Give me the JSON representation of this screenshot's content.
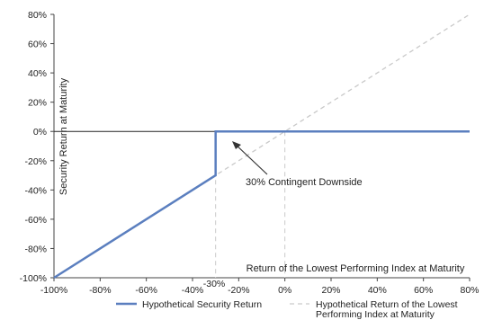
{
  "chart_data": {
    "type": "line",
    "xlabel": "Return of the Lowest Performing Index at Maturity",
    "ylabel": "Security Return at Maturity",
    "xlim": [
      -100,
      80
    ],
    "ylim": [
      -100,
      80
    ],
    "x_ticks": [
      "-100%",
      "-80%",
      "-60%",
      "-40%",
      "-20%",
      "0%",
      "20%",
      "40%",
      "60%",
      "80%"
    ],
    "y_ticks": [
      "80%",
      "60%",
      "40%",
      "20%",
      "0%",
      "-20%",
      "-40%",
      "-60%",
      "-80%",
      "-100%"
    ],
    "x_tick_values": [
      -100,
      -80,
      -60,
      -40,
      -20,
      0,
      20,
      40,
      60,
      80
    ],
    "y_tick_values": [
      80,
      60,
      40,
      20,
      0,
      -20,
      -40,
      -60,
      -80,
      -100
    ],
    "grid": false,
    "legend_position": "bottom",
    "series": [
      {
        "name": "Hypothetical Security Return",
        "color": "#5b7fbf",
        "style": "solid",
        "x": [
          -100,
          -30,
          -30,
          80
        ],
        "y": [
          -100,
          -30,
          0,
          0
        ]
      },
      {
        "name": "Hypothetical Return of the Lowest Performing Index at Maturity",
        "color": "#c9c9c9",
        "style": "dashed",
        "x": [
          -100,
          80
        ],
        "y": [
          -100,
          80
        ]
      }
    ],
    "annotations": [
      {
        "text": "30% Contingent Downside",
        "target_x": -30,
        "target_y": 0
      },
      {
        "text": "-30%",
        "at_x": -30
      }
    ]
  }
}
